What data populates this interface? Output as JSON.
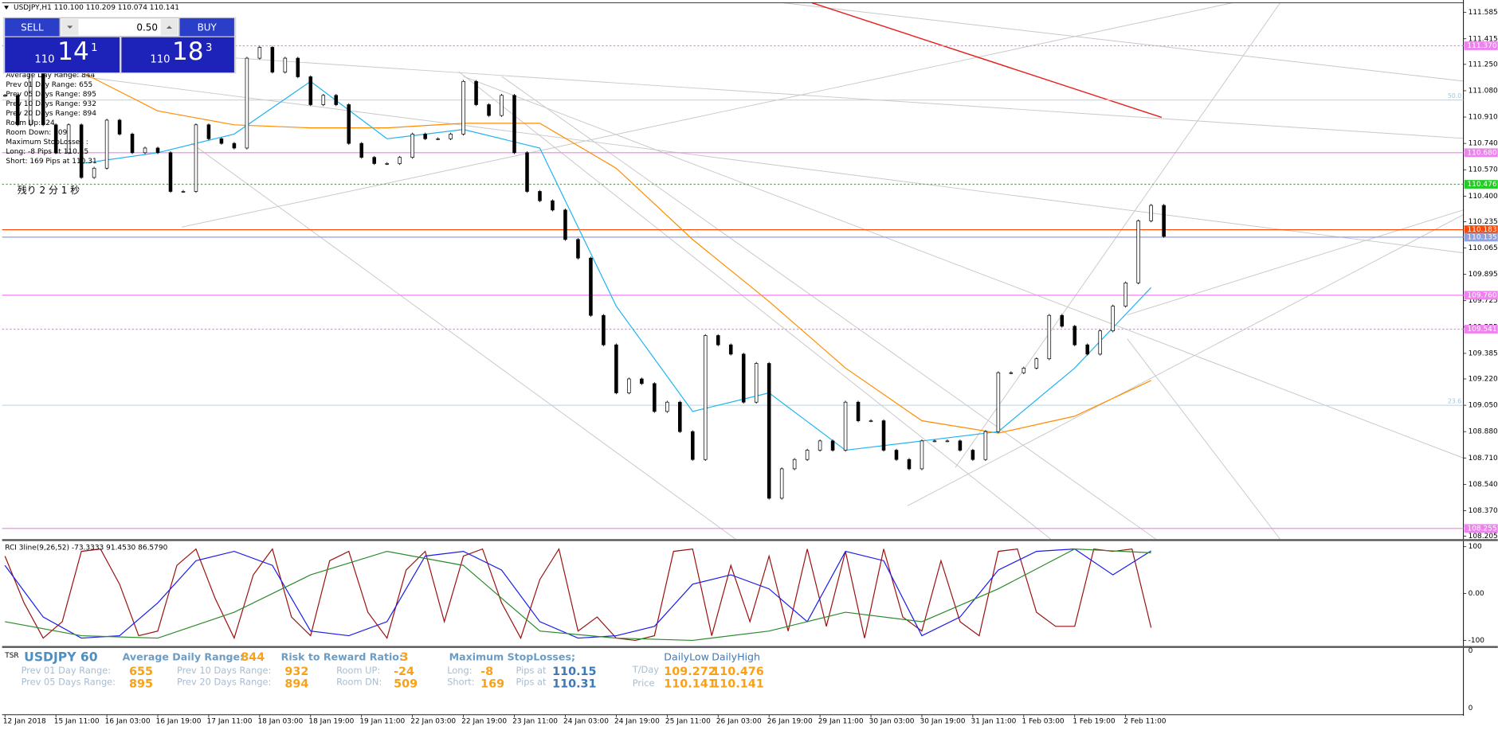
{
  "header": {
    "symbol_info": "USDJPY,H1  110.100 110.209 110.074 110.141"
  },
  "trade_panel": {
    "sell_label": "SELL",
    "lot": "0.50",
    "buy_label": "BUY",
    "sell_price": [
      "110",
      "14",
      "1"
    ],
    "buy_price": [
      "110",
      "18",
      "3"
    ]
  },
  "overlay_stats": [
    "Average Day  Range: 844",
    "Prev 01  Day  Range: 655",
    "Prev 05  Days Range: 895",
    "Prev 10  Days Range: 932",
    "Prev 20  Days Range: 894",
    "Room Up: -24",
    "Room Down: 509",
    "Maximum StopLosses :",
    "Long: -8 Pips at 110.15",
    "Short: 169 Pips at 110.31"
  ],
  "timer": "残り 2 分 1 秒",
  "chart_data": [
    {
      "type": "candlestick",
      "xlim": [
        -0.9,
        458.1
      ],
      "ylim": [
        108.186,
        111.647
      ],
      "yticks": [
        {
          "value": 111.585,
          "label": "111.585"
        },
        {
          "value": 111.415,
          "label": "111.415"
        },
        {
          "value": 111.25,
          "label": "111.250"
        },
        {
          "value": 111.08,
          "label": "111.080"
        },
        {
          "value": 110.91,
          "label": "110.910"
        },
        {
          "value": 110.74,
          "label": "110.740"
        },
        {
          "value": 110.57,
          "label": "110.570"
        },
        {
          "value": 110.4,
          "label": "110.400"
        },
        {
          "value": 110.235,
          "label": "110.235"
        },
        {
          "value": 110.065,
          "label": "110.065"
        },
        {
          "value": 109.895,
          "label": "109.895"
        },
        {
          "value": 109.725,
          "label": "109.725"
        },
        {
          "value": 109.555,
          "label": "109.555"
        },
        {
          "value": 109.385,
          "label": "109.385"
        },
        {
          "value": 109.22,
          "label": "109.220"
        },
        {
          "value": 109.05,
          "label": "109.050"
        },
        {
          "value": 108.88,
          "label": "108.880"
        },
        {
          "value": 108.71,
          "label": "108.710"
        },
        {
          "value": 108.54,
          "label": "108.540"
        },
        {
          "value": 108.37,
          "label": "108.370"
        },
        {
          "value": 108.205,
          "label": "108.205"
        }
      ],
      "xticks": [
        {
          "value": 0,
          "label": "12 Jan 2018"
        },
        {
          "value": 16,
          "label": "15 Jan 11:00"
        },
        {
          "value": 32,
          "label": "16 Jan 03:00"
        },
        {
          "value": 48,
          "label": "16 Jan 19:00"
        },
        {
          "value": 64,
          "label": "17 Jan 11:00"
        },
        {
          "value": 80,
          "label": "18 Jan 03:00"
        },
        {
          "value": 96,
          "label": "18 Jan 19:00"
        },
        {
          "value": 112,
          "label": "19 Jan 11:00"
        },
        {
          "value": 128,
          "label": "22 Jan 03:00"
        },
        {
          "value": 144,
          "label": "22 Jan 19:00"
        },
        {
          "value": 160,
          "label": "23 Jan 11:00"
        },
        {
          "value": 176,
          "label": "24 Jan 03:00"
        },
        {
          "value": 192,
          "label": "24 Jan 19:00"
        },
        {
          "value": 208,
          "label": "25 Jan 11:00"
        },
        {
          "value": 224,
          "label": "26 Jan 03:00"
        },
        {
          "value": 240,
          "label": "26 Jan 19:00"
        },
        {
          "value": 256,
          "label": "29 Jan 11:00"
        },
        {
          "value": 272,
          "label": "30 Jan 03:00"
        },
        {
          "value": 288,
          "label": "30 Jan 19:00"
        },
        {
          "value": 304,
          "label": "31 Jan 11:00"
        },
        {
          "value": 320,
          "label": "1 Feb 03:00"
        },
        {
          "value": 336,
          "label": "1 Feb 19:00"
        },
        {
          "value": 352,
          "label": "2 Feb 11:00"
        }
      ],
      "x": [
        0,
        4,
        8,
        12,
        16,
        20,
        24,
        28,
        32,
        36,
        40,
        44,
        48,
        52,
        56,
        60,
        64,
        68,
        72,
        76,
        80,
        84,
        88,
        92,
        96,
        100,
        104,
        108,
        112,
        116,
        120,
        124,
        128,
        132,
        136,
        140,
        144,
        148,
        152,
        156,
        160,
        164,
        168,
        172,
        176,
        180,
        184,
        188,
        192,
        196,
        200,
        204,
        208,
        212,
        216,
        220,
        224,
        228,
        232,
        236,
        240,
        244,
        248,
        252,
        256,
        260,
        264,
        268,
        272,
        276,
        280,
        284,
        288,
        292,
        296,
        300,
        304,
        308,
        312,
        316,
        320,
        324,
        328,
        332,
        336,
        340,
        344,
        348,
        352,
        356,
        360,
        364
      ],
      "close": [
        111.05,
        110.86,
        111.23,
        110.86,
        110.68,
        110.86,
        110.52,
        110.58,
        110.89,
        110.8,
        110.68,
        110.71,
        110.68,
        110.43,
        110.43,
        110.86,
        110.77,
        110.74,
        110.71,
        111.29,
        111.36,
        111.2,
        111.29,
        111.17,
        110.99,
        111.05,
        110.99,
        110.74,
        110.65,
        110.61,
        110.61,
        110.65,
        110.8,
        110.77,
        110.77,
        110.8,
        111.14,
        110.99,
        110.92,
        111.05,
        110.68,
        110.43,
        110.37,
        110.31,
        110.12,
        110.0,
        109.63,
        109.44,
        109.13,
        109.22,
        109.19,
        109.01,
        109.07,
        108.88,
        108.7,
        109.5,
        109.44,
        109.38,
        109.07,
        109.32,
        108.45,
        108.64,
        108.7,
        108.76,
        108.82,
        108.76,
        109.07,
        108.95,
        108.95,
        108.76,
        108.7,
        108.64,
        108.82,
        108.82,
        108.82,
        108.76,
        108.7,
        108.88,
        109.26,
        109.26,
        109.29,
        109.35,
        109.63,
        109.56,
        109.44,
        109.38,
        109.53,
        109.69,
        109.84,
        110.24,
        110.34,
        110.14
      ],
      "lines": [
        {
          "color": "#ff8c00",
          "x": [
            24,
            48,
            72,
            96,
            120,
            144,
            168,
            192,
            216,
            240,
            264,
            288,
            312,
            336,
            360
          ],
          "values": [
            111.2,
            110.95,
            110.86,
            110.84,
            110.84,
            110.87,
            110.87,
            110.58,
            110.12,
            109.72,
            109.29,
            108.95,
            108.87,
            108.98,
            109.21
          ]
        },
        {
          "color": "#1eb4f0",
          "x": [
            24,
            48,
            72,
            96,
            120,
            144,
            168,
            192,
            216,
            240,
            264,
            288,
            312,
            336,
            360
          ],
          "values": [
            110.61,
            110.68,
            110.8,
            111.14,
            110.77,
            110.83,
            110.71,
            109.69,
            109.01,
            109.13,
            108.76,
            108.82,
            108.88,
            109.29,
            109.81
          ]
        }
      ],
      "levels": [
        {
          "value": 111.37,
          "label": "111.370",
          "color": "#ee82ee",
          "style": "dotted"
        },
        {
          "value": 110.68,
          "label": "110.680",
          "color": "#ee82ee",
          "style": "solid"
        },
        {
          "value": 110.476,
          "label": "110.476",
          "color": "#22cc22",
          "style": "dotted"
        },
        {
          "value": 110.183,
          "label": "110.183",
          "color": "#ff4500",
          "style": "solid"
        },
        {
          "value": 110.135,
          "label": "110.135",
          "color": "#8fa0dd",
          "style": "solid"
        },
        {
          "value": 109.76,
          "label": "109.760",
          "color": "#ee82ee",
          "style": "solid"
        },
        {
          "value": 109.541,
          "label": "109.541",
          "color": "#ee82ee",
          "style": "dotted"
        },
        {
          "value": 108.255,
          "label": "108.255",
          "color": "#ee82ee",
          "style": "solid"
        }
      ],
      "fib_levels": [
        {
          "value": 111.02,
          "label": "50.0"
        },
        {
          "value": 109.05,
          "label": "23.6"
        }
      ]
    },
    {
      "type": "line",
      "title": "RCI 3line(9,26,52) -73.3333 91.4530 86.5790",
      "xlim": [
        -0.9,
        458.1
      ],
      "ylim": [
        -112,
        112
      ],
      "yticks": [
        100,
        {
          "value": 0,
          "label": "0.00"
        },
        -100
      ],
      "series": [
        {
          "color": "#9b1010",
          "x": [
            0,
            6,
            12,
            18,
            24,
            30,
            36,
            42,
            48,
            54,
            60,
            66,
            72,
            78,
            84,
            90,
            96,
            102,
            108,
            114,
            120,
            126,
            132,
            138,
            144,
            150,
            156,
            162,
            168,
            174,
            180,
            186,
            192,
            198,
            204,
            210,
            216,
            222,
            228,
            234,
            240,
            246,
            252,
            258,
            264,
            270,
            276,
            282,
            288,
            294,
            300,
            306,
            312,
            318,
            324,
            330,
            336,
            342,
            348,
            354,
            360
          ],
          "values": [
            80,
            -20,
            -95,
            -60,
            90,
            95,
            20,
            -90,
            -80,
            60,
            95,
            -10,
            -95,
            40,
            95,
            -50,
            -90,
            70,
            90,
            -40,
            -95,
            50,
            90,
            -60,
            80,
            95,
            -20,
            -95,
            30,
            95,
            -80,
            -50,
            -95,
            -100,
            -90,
            90,
            95,
            -90,
            60,
            -60,
            80,
            -80,
            95,
            -70,
            90,
            -95,
            95,
            -50,
            -80,
            70,
            -60,
            -90,
            90,
            95,
            -40,
            -70,
            -70,
            95,
            90,
            95,
            -73
          ]
        },
        {
          "color": "#1a1aee",
          "x": [
            0,
            12,
            24,
            36,
            48,
            60,
            72,
            84,
            96,
            108,
            120,
            132,
            144,
            156,
            168,
            180,
            192,
            204,
            216,
            228,
            240,
            252,
            264,
            276,
            288,
            300,
            312,
            324,
            336,
            348,
            360
          ],
          "values": [
            60,
            -50,
            -95,
            -90,
            -20,
            70,
            90,
            60,
            -80,
            -90,
            -60,
            80,
            90,
            50,
            -60,
            -95,
            -90,
            -70,
            20,
            40,
            10,
            -60,
            90,
            70,
            -90,
            -50,
            50,
            90,
            95,
            40,
            91
          ]
        },
        {
          "color": "#2a8a2a",
          "x": [
            0,
            24,
            48,
            72,
            96,
            120,
            144,
            168,
            192,
            216,
            240,
            264,
            288,
            312,
            336,
            360
          ],
          "values": [
            -60,
            -90,
            -95,
            -40,
            40,
            90,
            60,
            -80,
            -95,
            -100,
            -80,
            -40,
            -60,
            10,
            95,
            87
          ]
        }
      ]
    }
  ],
  "tsr_panel": {
    "tag": "TSR",
    "symbol": "USDJPY 60",
    "avg_label": "Average Daily Range:",
    "avg_value": "844",
    "rr_label": "Risk to Reward Ratio:",
    "rr_value": "3",
    "max_sl": "Maximum StopLosses;",
    "daily_low": "DailyLow",
    "daily_high": "DailyHigh",
    "prev01_label": "Prev 01 Day Range:",
    "prev01": "655",
    "prev10_label": "Prev 10 Days Range:",
    "prev10": "932",
    "room_up_label": "Room UP:",
    "room_up": "-24",
    "long_label": "Long:",
    "long": "-8",
    "pips_at_1": "Pips at",
    "long_price": "110.15",
    "tday_label": "T/Day",
    "tday_low": "109.272",
    "tday_high": "110.476",
    "prev05_label": "Prev 05 Days Range:",
    "prev05": "895",
    "prev20_label": "Prev 20 Days Range:",
    "prev20": "894",
    "room_dn_label": "Room DN:",
    "room_dn": "509",
    "short_label": "Short:",
    "short": "169",
    "pips_at_2": "Pips at",
    "short_price": "110.31",
    "price_label": "Price",
    "price_low": "110.141",
    "price_high": "110.141",
    "axis_top": "0",
    "axis_bottom": "0"
  }
}
